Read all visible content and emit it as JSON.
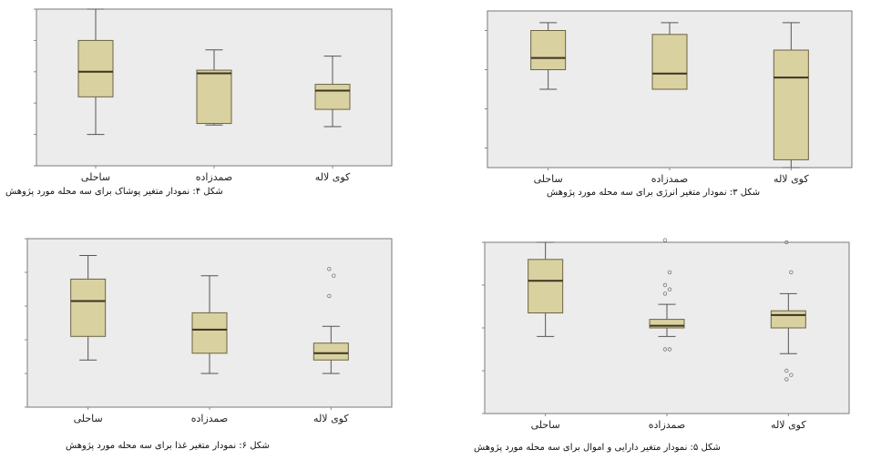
{
  "panels": [
    {
      "id": "p1",
      "caption": "شکل ۴: نمودار متغیر پوشاک برای سه محله مورد پژوهش",
      "chart_data": {
        "type": "box",
        "categories": [
          "ساحلی",
          "صمدزاده",
          "کوی لاله"
        ],
        "ylim": [
          0,
          5
        ],
        "boxes": [
          {
            "min": 1.0,
            "q1": 2.2,
            "median": 3.0,
            "q3": 4.0,
            "max": 5.0,
            "outliers": []
          },
          {
            "min": 1.3,
            "q1": 1.35,
            "median": 2.95,
            "q3": 3.05,
            "max": 3.7,
            "outliers": []
          },
          {
            "min": 1.25,
            "q1": 1.8,
            "median": 2.4,
            "q3": 2.6,
            "max": 3.5,
            "outliers": []
          }
        ]
      }
    },
    {
      "id": "p2",
      "caption": "شکل ۳: نمودار متغیر انرژی برای سه محله مورد پژوهش",
      "chart_data": {
        "type": "box",
        "categories": [
          "ساحلی",
          "صمدزاده",
          "کوی لاله"
        ],
        "ylim": [
          0.5,
          4.5
        ],
        "boxes": [
          {
            "min": 2.5,
            "q1": 3.0,
            "median": 3.3,
            "q3": 4.0,
            "max": 4.2,
            "outliers": []
          },
          {
            "min": 2.5,
            "q1": 2.5,
            "median": 2.9,
            "q3": 3.9,
            "max": 4.2,
            "outliers": []
          },
          {
            "min": 0.5,
            "q1": 0.7,
            "median": 2.8,
            "q3": 3.5,
            "max": 4.2,
            "outliers": []
          }
        ]
      }
    },
    {
      "id": "p3",
      "caption": "شکل ۶: نمودار متغیر غذا برای سه محله مورد پژوهش",
      "chart_data": {
        "type": "box",
        "categories": [
          "ساحلی",
          "صمدزاده",
          "کوی لاله"
        ],
        "ylim": [
          0,
          5
        ],
        "boxes": [
          {
            "min": 1.4,
            "q1": 2.1,
            "median": 3.15,
            "q3": 3.8,
            "max": 4.5,
            "outliers": []
          },
          {
            "min": 1.0,
            "q1": 1.6,
            "median": 2.3,
            "q3": 2.8,
            "max": 3.9,
            "outliers": []
          },
          {
            "min": 1.0,
            "q1": 1.4,
            "median": 1.6,
            "q3": 1.9,
            "max": 2.4,
            "outliers": [
              3.3,
              3.9,
              4.1
            ]
          }
        ]
      }
    },
    {
      "id": "p4",
      "caption": "شکل ۵: نمودار متغیر دارایی و اموال برای سه محله مورد پژوهش",
      "chart_data": {
        "type": "box",
        "categories": [
          "ساحلی",
          "صمدزاده",
          "کوی لاله"
        ],
        "ylim": [
          0,
          4
        ],
        "boxes": [
          {
            "min": 1.8,
            "q1": 2.35,
            "median": 3.1,
            "q3": 3.6,
            "max": 4.0,
            "outliers": []
          },
          {
            "min": 1.8,
            "q1": 2.0,
            "median": 2.05,
            "q3": 2.2,
            "max": 2.55,
            "outliers": [
              1.5,
              1.5,
              2.8,
              2.9,
              3.0,
              3.3,
              4.05
            ]
          },
          {
            "min": 1.4,
            "q1": 2.0,
            "median": 2.3,
            "q3": 2.4,
            "max": 2.8,
            "outliers": [
              0.8,
              0.9,
              1.0,
              3.3,
              4.0
            ]
          }
        ]
      }
    }
  ],
  "style": {
    "plot_bg": "#ececec",
    "plot_border": "#7a7a7a",
    "box_fill": "#d9d1a0",
    "box_stroke": "#6b6442",
    "median_stroke": "#3a3420",
    "whisker": "#555555",
    "outlier": "#777777"
  }
}
